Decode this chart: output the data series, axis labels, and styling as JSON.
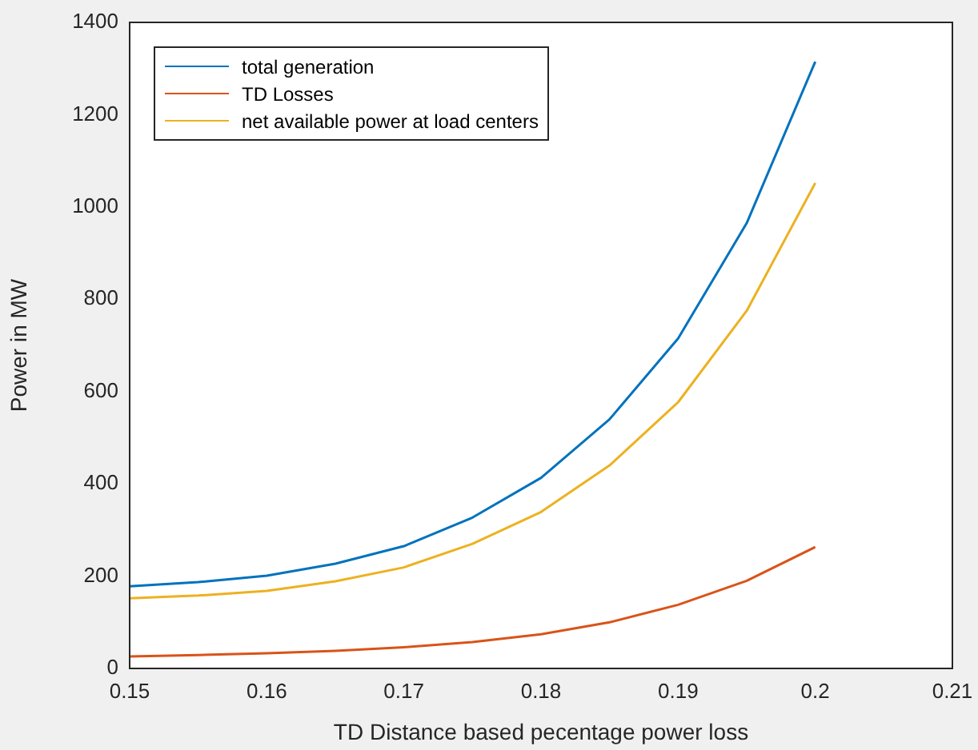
{
  "chart_data": {
    "type": "line",
    "xlabel": "TD Distance based pecentage power loss",
    "ylabel": "Power in MW",
    "x": [
      0.15,
      0.155,
      0.16,
      0.165,
      0.17,
      0.175,
      0.18,
      0.185,
      0.19,
      0.195,
      0.2
    ],
    "series": [
      {
        "name": "total generation",
        "color": "#0072bd",
        "values": [
          178,
          187,
          201,
          227,
          265,
          327,
          413,
          540,
          715,
          965,
          1315
        ]
      },
      {
        "name": "TD Losses",
        "color": "#d95319",
        "values": [
          26,
          29,
          33,
          38,
          46,
          57,
          74,
          100,
          138,
          190,
          263
        ]
      },
      {
        "name": "net available power at load centers",
        "color": "#edb120",
        "values": [
          152,
          158,
          168,
          189,
          219,
          270,
          339,
          440,
          577,
          775,
          1052
        ]
      }
    ],
    "xlim": [
      0.15,
      0.21
    ],
    "xticks": [
      0.15,
      0.16,
      0.17,
      0.18,
      0.19,
      0.2,
      0.21
    ],
    "ylim": [
      0,
      1400
    ],
    "yticks": [
      0,
      200,
      400,
      600,
      800,
      1000,
      1200,
      1400
    ],
    "grid": false,
    "legend": "top left",
    "marker": "none",
    "line_style": "solid"
  }
}
